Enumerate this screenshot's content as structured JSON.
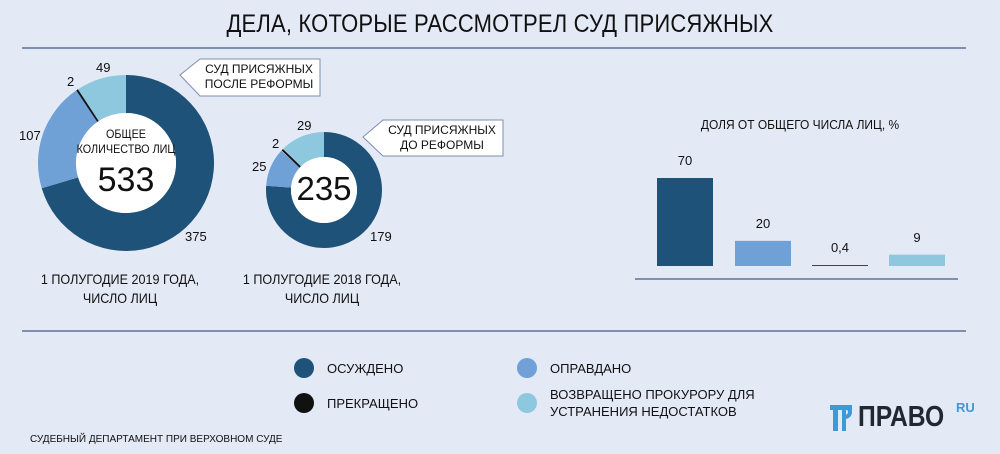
{
  "title": "ДЕЛА, КОТОРЫЕ РАССМОТРЕЛ СУД ПРИСЯЖНЫХ",
  "colors": {
    "convicted": "#1f5278",
    "acquitted": "#6fa0d6",
    "terminated": "#111111",
    "returned": "#8ec8df"
  },
  "chart_data": [
    {
      "type": "pie",
      "title": "1 ПОЛУГОДИЕ 2019 ГОДА, ЧИСЛО ЛИЦ",
      "callout": "СУД ПРИСЯЖНЫХ ПОСЛЕ РЕФОРМЫ",
      "center_label": "ОБЩЕЕ КОЛИЧЕСТВО ЛИЦ",
      "total": "533",
      "categories": [
        "ОСУЖДЕНО",
        "ОПРАВДАНО",
        "ПРЕКРАЩЕНО",
        "ВОЗВРАЩЕНО ПРОКУРОРУ ДЛЯ УСТРАНЕНИЯ НЕДОСТАТКОВ"
      ],
      "values": [
        375,
        107,
        2,
        49
      ]
    },
    {
      "type": "pie",
      "title": "1 ПОЛУГОДИЕ 2018 ГОДА, ЧИСЛО ЛИЦ",
      "callout": "СУД ПРИСЯЖНЫХ ДО РЕФОРМЫ",
      "total": "235",
      "categories": [
        "ОСУЖДЕНО",
        "ОПРАВДАНО",
        "ПРЕКРАЩЕНО",
        "ВОЗВРАЩЕНО ПРОКУРОРУ ДЛЯ УСТРАНЕНИЯ НЕДОСТАТКОВ"
      ],
      "values": [
        179,
        25,
        2,
        29
      ]
    },
    {
      "type": "bar",
      "title": "ДОЛЯ ОТ ОБЩЕГО ЧИСЛА ЛИЦ, %",
      "categories": [
        "ОСУЖДЕНО",
        "ОПРАВДАНО",
        "ПРЕКРАЩЕНО",
        "ВОЗВРАЩЕНО ПРОКУРОРУ ДЛЯ УСТРАНЕНИЯ НЕДОСТАТКОВ"
      ],
      "values": [
        70,
        20,
        0.4,
        9
      ],
      "labels": [
        "70",
        "20",
        "0,4",
        "9"
      ],
      "ylim": [
        0,
        70
      ]
    }
  ],
  "legend": [
    {
      "label": "ОСУЖДЕНО"
    },
    {
      "label": "ОПРАВДАНО"
    },
    {
      "label": "ПРЕКРАЩЕНО"
    },
    {
      "label": "ВОЗВРАЩЕНО ПРОКУРОРУ ДЛЯ УСТРАНЕНИЯ НЕДОСТАТКОВ"
    }
  ],
  "source": "СУДЕБНЫЙ ДЕПАРТАМЕНТ ПРИ ВЕРХОВНОМ СУДЕ",
  "logo": {
    "text": "ПРАВО",
    "suffix": "RU"
  }
}
